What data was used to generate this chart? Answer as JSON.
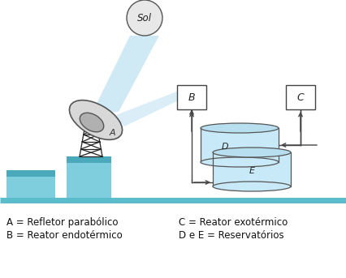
{
  "background_color": "#ffffff",
  "ground_line_color": "#5bbccc",
  "beam_color": "#b8dff0",
  "beam2_color": "#b8dff0",
  "box_color": "#ffffff",
  "box_border": "#444444",
  "tower_color": "#222222",
  "dish_outer_color": "#d8d8d8",
  "dish_inner_color": "#b0b0b0",
  "dish_edge_color": "#555555",
  "sun_face_color": "#e8e8e8",
  "sun_edge_color": "#555555",
  "building_color": "#7ecedd",
  "building_top_color": "#4aaabb",
  "cyl_top_color": "#b8dff0",
  "cyl_side_color": "#c8eaf8",
  "cyl_edge_color": "#555555",
  "arrow_color": "#444444",
  "legend_lines": [
    "A = Refletor parabólico",
    "B = Reator endotérmico",
    "C = Reator exotérmico",
    "D e E = Reservatórios"
  ]
}
